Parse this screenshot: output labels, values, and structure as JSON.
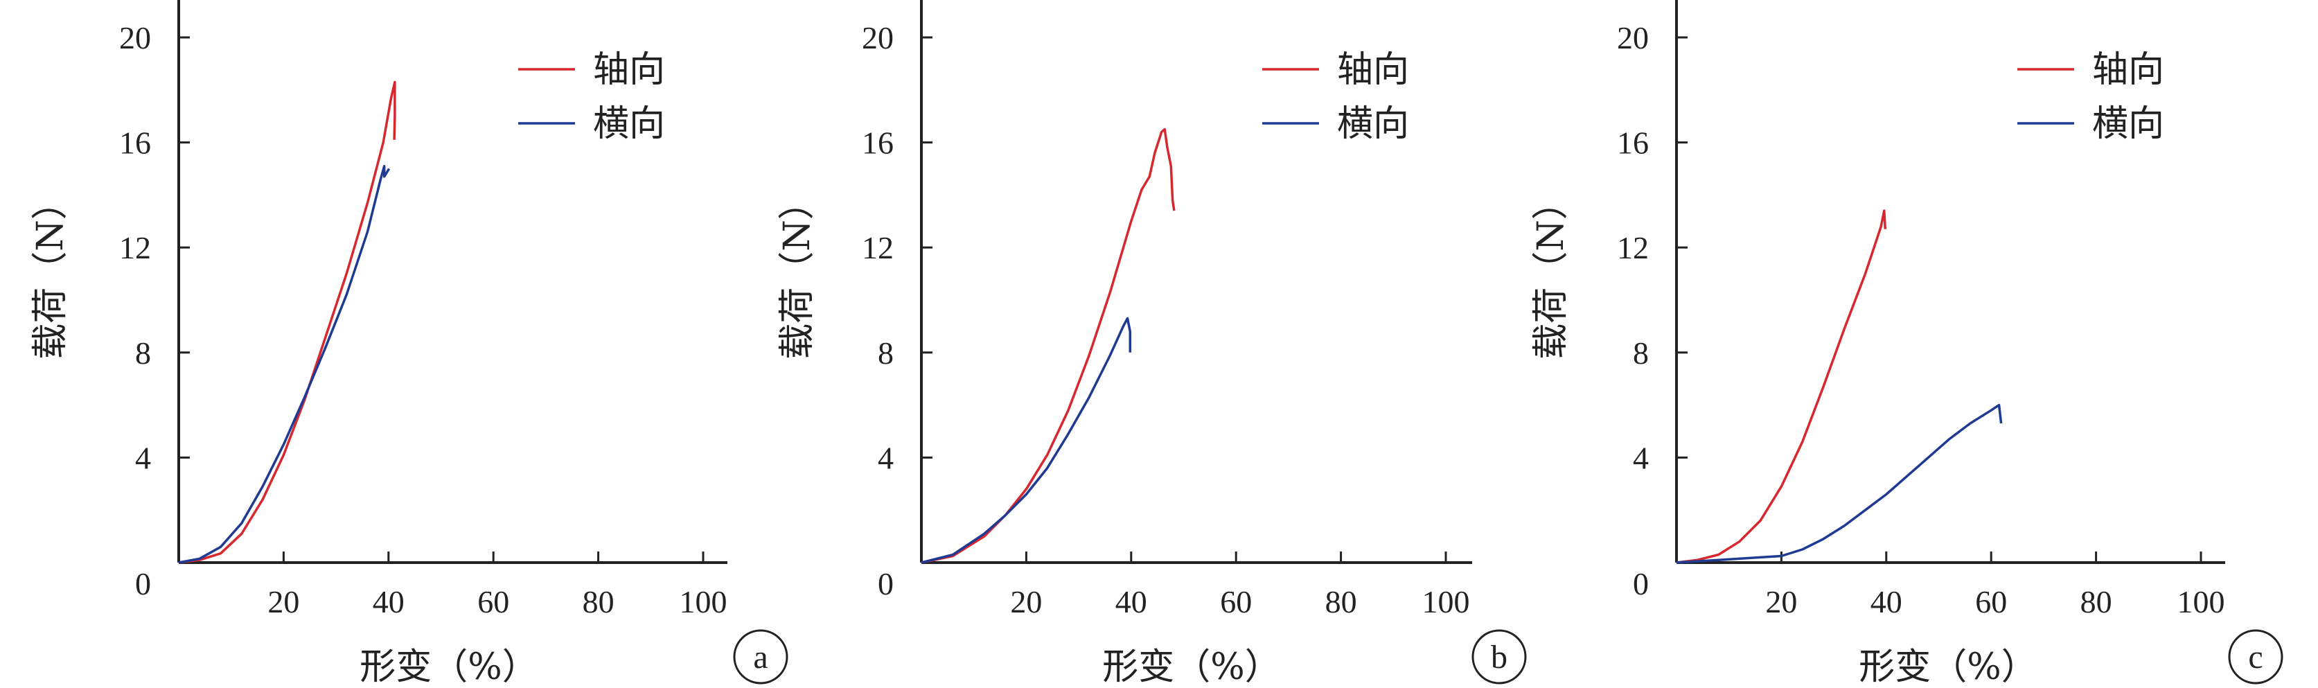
{
  "chart_data": [
    {
      "type": "line",
      "panel_label": "a",
      "xlabel": "形变（%）",
      "ylabel": "载荷（N）",
      "xticks": [
        0,
        20,
        40,
        60,
        80,
        100
      ],
      "xtick_labels": [
        "",
        "20",
        "40",
        "60",
        "80",
        "100"
      ],
      "yticks": [
        0,
        4,
        8,
        12,
        16,
        20
      ],
      "ytick_labels": [
        "0",
        "4",
        "8",
        "12",
        "16",
        "20"
      ],
      "xlim": [
        0,
        105
      ],
      "ylim": [
        0,
        22
      ],
      "legend_position": "top-right",
      "series": [
        {
          "name": "轴向",
          "color": "#d7282f",
          "points": [
            [
              0,
              0
            ],
            [
              4,
              0.1
            ],
            [
              8,
              0.35
            ],
            [
              12,
              1.1
            ],
            [
              16,
              2.4
            ],
            [
              20,
              4.1
            ],
            [
              24,
              6.2
            ],
            [
              28,
              8.6
            ],
            [
              32,
              11.0
            ],
            [
              36,
              13.7
            ],
            [
              39,
              16.0
            ],
            [
              40.5,
              17.7
            ],
            [
              41.2,
              18.3
            ],
            [
              41.2,
              17.0
            ],
            [
              41.1,
              16.1
            ]
          ]
        },
        {
          "name": "横向",
          "color": "#1f3a93",
          "points": [
            [
              0,
              0
            ],
            [
              4,
              0.15
            ],
            [
              8,
              0.6
            ],
            [
              12,
              1.5
            ],
            [
              16,
              2.9
            ],
            [
              20,
              4.5
            ],
            [
              24,
              6.3
            ],
            [
              28,
              8.2
            ],
            [
              32,
              10.2
            ],
            [
              36,
              12.6
            ],
            [
              38.5,
              14.6
            ],
            [
              39.2,
              15.1
            ],
            [
              39.2,
              14.7
            ],
            [
              40.1,
              15.0
            ]
          ]
        }
      ]
    },
    {
      "type": "line",
      "panel_label": "b",
      "xlabel": "形变（%）",
      "ylabel": "载荷（N）",
      "xticks": [
        0,
        20,
        40,
        60,
        80,
        100
      ],
      "xtick_labels": [
        "",
        "20",
        "40",
        "60",
        "80",
        "100"
      ],
      "yticks": [
        0,
        4,
        8,
        12,
        16,
        20
      ],
      "ytick_labels": [
        "0",
        "4",
        "8",
        "12",
        "16",
        "20"
      ],
      "xlim": [
        0,
        105
      ],
      "ylim": [
        0,
        22
      ],
      "legend_position": "top-right",
      "series": [
        {
          "name": "轴向",
          "color": "#d7282f",
          "points": [
            [
              0,
              0
            ],
            [
              6,
              0.25
            ],
            [
              12,
              1.0
            ],
            [
              16,
              1.8
            ],
            [
              20,
              2.8
            ],
            [
              24,
              4.1
            ],
            [
              28,
              5.8
            ],
            [
              32,
              7.9
            ],
            [
              36,
              10.3
            ],
            [
              40,
              13.0
            ],
            [
              42,
              14.2
            ],
            [
              43.5,
              14.7
            ],
            [
              44.5,
              15.6
            ],
            [
              45.8,
              16.4
            ],
            [
              46.4,
              16.5
            ],
            [
              46.9,
              15.8
            ],
            [
              47.6,
              15.1
            ],
            [
              47.9,
              13.8
            ],
            [
              48.2,
              13.4
            ]
          ]
        },
        {
          "name": "横向",
          "color": "#1f3a93",
          "points": [
            [
              0,
              0
            ],
            [
              6,
              0.3
            ],
            [
              12,
              1.1
            ],
            [
              16,
              1.8
            ],
            [
              20,
              2.6
            ],
            [
              24,
              3.6
            ],
            [
              28,
              4.9
            ],
            [
              32,
              6.3
            ],
            [
              36,
              7.9
            ],
            [
              38.5,
              9.0
            ],
            [
              39.3,
              9.3
            ],
            [
              39.8,
              8.8
            ],
            [
              39.8,
              8.0
            ]
          ]
        }
      ]
    },
    {
      "type": "line",
      "panel_label": "c",
      "xlabel": "形变（%）",
      "ylabel": "载荷（N）",
      "xticks": [
        0,
        20,
        40,
        60,
        80,
        100
      ],
      "xtick_labels": [
        "",
        "20",
        "40",
        "60",
        "80",
        "100"
      ],
      "yticks": [
        0,
        4,
        8,
        12,
        16,
        20
      ],
      "ytick_labels": [
        "0",
        "4",
        "8",
        "12",
        "16",
        "20"
      ],
      "xlim": [
        0,
        105
      ],
      "ylim": [
        0,
        22
      ],
      "legend_position": "top-right",
      "series": [
        {
          "name": "轴向",
          "color": "#d7282f",
          "points": [
            [
              0,
              0
            ],
            [
              4,
              0.1
            ],
            [
              8,
              0.3
            ],
            [
              12,
              0.8
            ],
            [
              16,
              1.6
            ],
            [
              20,
              2.9
            ],
            [
              24,
              4.6
            ],
            [
              28,
              6.7
            ],
            [
              32,
              8.9
            ],
            [
              36,
              11.0
            ],
            [
              39,
              12.8
            ],
            [
              39.6,
              13.4
            ],
            [
              39.8,
              12.7
            ]
          ]
        },
        {
          "name": "横向",
          "color": "#1f3a93",
          "points": [
            [
              0,
              0
            ],
            [
              8,
              0.1
            ],
            [
              16,
              0.2
            ],
            [
              20,
              0.25
            ],
            [
              24,
              0.5
            ],
            [
              28,
              0.9
            ],
            [
              32,
              1.4
            ],
            [
              36,
              2.0
            ],
            [
              40,
              2.6
            ],
            [
              44,
              3.3
            ],
            [
              48,
              4.0
            ],
            [
              52,
              4.7
            ],
            [
              56,
              5.3
            ],
            [
              60,
              5.8
            ],
            [
              61.5,
              6.0
            ],
            [
              61.9,
              5.3
            ]
          ]
        }
      ]
    }
  ]
}
